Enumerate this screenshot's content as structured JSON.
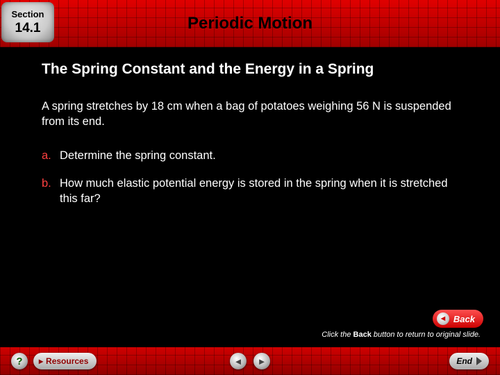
{
  "header": {
    "section_label": "Section",
    "section_number": "14.1",
    "chapter_title": "Periodic Motion",
    "band_color": "#c00000"
  },
  "content": {
    "slide_title": "The Spring Constant and the Energy in a Spring",
    "problem_text": "A spring stretches by 18 cm when a bag of potatoes weighing 56 N is suspended from its end.",
    "parts": [
      {
        "letter": "a.",
        "text": "Determine the spring constant."
      },
      {
        "letter": "b.",
        "text": "How much elastic potential energy is stored in the spring when it is stretched this far?"
      }
    ],
    "letter_color": "#ff4040",
    "text_color": "#ffffff"
  },
  "back_button": {
    "label": "Back",
    "hint_prefix": "Click the ",
    "hint_bold": "Back",
    "hint_suffix": " button to return to original slide."
  },
  "footer": {
    "help_label": "?",
    "resources_label": "Resources",
    "end_label": "End",
    "band_color": "#b00000"
  }
}
